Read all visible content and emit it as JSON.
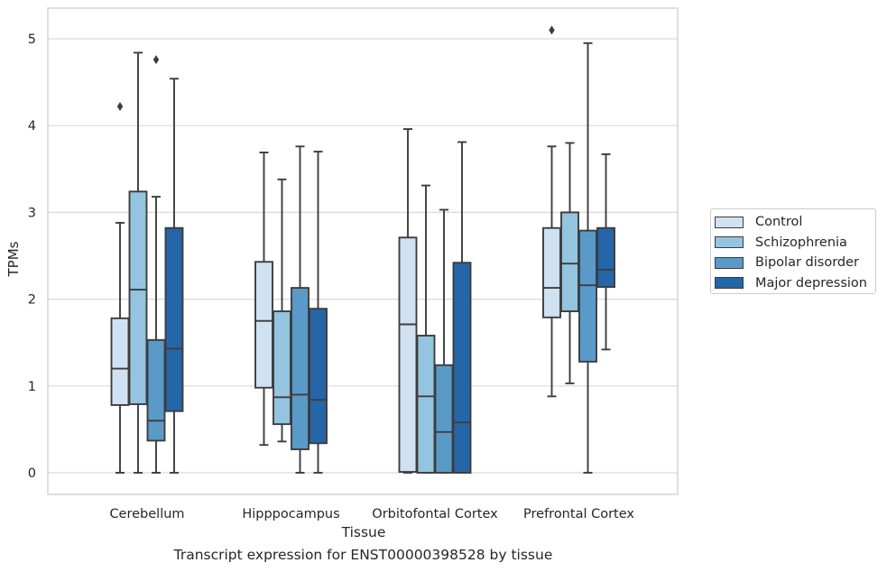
{
  "chart_data": {
    "type": "box",
    "title": "",
    "caption": "Transcript expression for ENST00000398528 by tissue",
    "xlabel": "Tissue",
    "ylabel": "TPMs",
    "ylim": [
      -0.25,
      5.35
    ],
    "yticks": [
      0,
      1,
      2,
      3,
      4,
      5
    ],
    "grid": "horizontal",
    "legend_position": "right",
    "categories": [
      "Cerebellum",
      "Hipppocampus",
      "Orbitofontal Cortex",
      "Prefrontal Cortex"
    ],
    "series": [
      {
        "name": "Control",
        "color": "#d0e1f2",
        "boxes": [
          {
            "whislo": 0.0,
            "q1": 0.78,
            "med": 1.2,
            "q3": 1.78,
            "whishi": 2.88,
            "fliers": [
              4.22
            ]
          },
          {
            "whislo": 0.32,
            "q1": 0.98,
            "med": 1.75,
            "q3": 2.43,
            "whishi": 3.69,
            "fliers": []
          },
          {
            "whislo": 0.0,
            "q1": 0.01,
            "med": 1.71,
            "q3": 2.71,
            "whishi": 3.96,
            "fliers": []
          },
          {
            "whislo": 0.88,
            "q1": 1.79,
            "med": 2.13,
            "q3": 2.82,
            "whishi": 3.76,
            "fliers": [
              5.1
            ]
          }
        ]
      },
      {
        "name": "Schizophrenia",
        "color": "#94c4df",
        "boxes": [
          {
            "whislo": 0.0,
            "q1": 0.79,
            "med": 2.11,
            "q3": 3.24,
            "whishi": 4.84,
            "fliers": []
          },
          {
            "whislo": 0.36,
            "q1": 0.56,
            "med": 0.87,
            "q3": 1.86,
            "whishi": 3.38,
            "fliers": []
          },
          {
            "whislo": 0.0,
            "q1": 0.0,
            "med": 0.88,
            "q3": 1.58,
            "whishi": 3.31,
            "fliers": []
          },
          {
            "whislo": 1.03,
            "q1": 1.86,
            "med": 2.41,
            "q3": 3.0,
            "whishi": 3.8,
            "fliers": []
          }
        ]
      },
      {
        "name": "Bipolar disorder",
        "color": "#5a9ac8",
        "boxes": [
          {
            "whislo": 0.0,
            "q1": 0.37,
            "med": 0.6,
            "q3": 1.53,
            "whishi": 3.18,
            "fliers": [
              4.76
            ]
          },
          {
            "whislo": 0.0,
            "q1": 0.27,
            "med": 0.9,
            "q3": 2.13,
            "whishi": 3.76,
            "fliers": []
          },
          {
            "whislo": 0.0,
            "q1": 0.0,
            "med": 0.47,
            "q3": 1.24,
            "whishi": 3.03,
            "fliers": []
          },
          {
            "whislo": 0.0,
            "q1": 1.28,
            "med": 2.16,
            "q3": 2.79,
            "whishi": 4.95,
            "fliers": []
          }
        ]
      },
      {
        "name": "Major depression",
        "color": "#2466a8",
        "boxes": [
          {
            "whislo": 0.0,
            "q1": 0.71,
            "med": 1.43,
            "q3": 2.82,
            "whishi": 4.54,
            "fliers": []
          },
          {
            "whislo": 0.0,
            "q1": 0.34,
            "med": 0.84,
            "q3": 1.89,
            "whishi": 3.7,
            "fliers": []
          },
          {
            "whislo": 0.0,
            "q1": 0.0,
            "med": 0.58,
            "q3": 2.42,
            "whishi": 3.81,
            "fliers": []
          },
          {
            "whislo": 1.42,
            "q1": 2.14,
            "med": 2.34,
            "q3": 2.82,
            "whishi": 3.67,
            "fliers": []
          }
        ]
      }
    ]
  }
}
